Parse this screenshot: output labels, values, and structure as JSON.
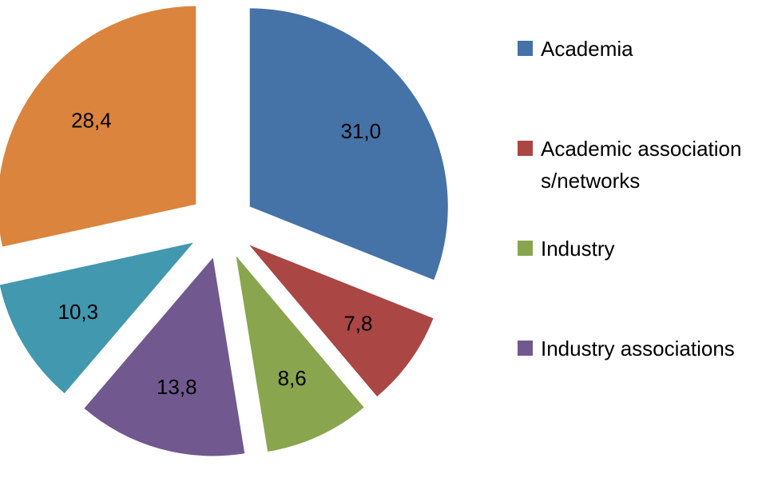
{
  "chart_data": {
    "type": "pie",
    "exploded": true,
    "categories": [
      "Academia",
      "Academic associations/networks",
      "Industry",
      "Industry associations",
      "",
      ""
    ],
    "values": [
      31.0,
      7.8,
      8.6,
      13.8,
      10.3,
      28.4
    ],
    "value_labels": [
      "31,0",
      "7,8",
      "8,6",
      "13,8",
      "10,3",
      "28,4"
    ],
    "colors": [
      "#4572A7",
      "#AA4643",
      "#89A54E",
      "#71588F",
      "#4198AF",
      "#DB843D"
    ],
    "legend_position": "right",
    "legend": [
      {
        "label": "Academia",
        "color": "#4572A7"
      },
      {
        "label": "Academic associations/networks",
        "color": "#AA4643"
      },
      {
        "label": "Industry",
        "color": "#89A54E"
      },
      {
        "label": "Industry associations",
        "color": "#71588F"
      }
    ]
  }
}
